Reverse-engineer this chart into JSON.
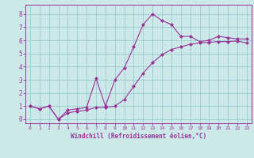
{
  "title": "",
  "xlabel": "Windchill (Refroidissement éolien,°C)",
  "ylabel": "",
  "bg_color": "#cce8e8",
  "line_color": "#993399",
  "grid_color": "#99cccc",
  "xlim": [
    -0.5,
    23.5
  ],
  "ylim": [
    -0.3,
    8.7
  ],
  "xticks": [
    0,
    1,
    2,
    3,
    4,
    5,
    6,
    7,
    8,
    9,
    10,
    11,
    12,
    13,
    14,
    15,
    16,
    17,
    18,
    19,
    20,
    21,
    22,
    23
  ],
  "yticks": [
    0,
    1,
    2,
    3,
    4,
    5,
    6,
    7,
    8
  ],
  "line1_x": [
    0,
    1,
    2,
    3,
    4,
    5,
    6,
    7,
    8,
    9,
    10,
    11,
    12,
    13,
    14,
    15,
    16,
    17,
    18,
    19,
    20,
    21,
    22,
    23
  ],
  "line1_y": [
    1.0,
    0.8,
    1.0,
    0.0,
    0.7,
    0.8,
    0.9,
    3.1,
    1.0,
    3.0,
    3.9,
    5.5,
    7.2,
    8.0,
    7.5,
    7.2,
    6.3,
    6.3,
    5.9,
    6.0,
    6.3,
    6.2,
    6.1,
    6.1
  ],
  "line2_x": [
    0,
    1,
    2,
    3,
    4,
    5,
    6,
    7,
    8,
    9,
    10,
    11,
    12,
    13,
    14,
    15,
    16,
    17,
    18,
    19,
    20,
    21,
    22,
    23
  ],
  "line2_y": [
    1.0,
    0.8,
    1.0,
    0.0,
    0.5,
    0.6,
    0.7,
    0.9,
    0.9,
    1.0,
    1.5,
    2.5,
    3.5,
    4.3,
    4.9,
    5.3,
    5.5,
    5.7,
    5.8,
    5.85,
    5.9,
    5.9,
    5.95,
    5.8
  ]
}
